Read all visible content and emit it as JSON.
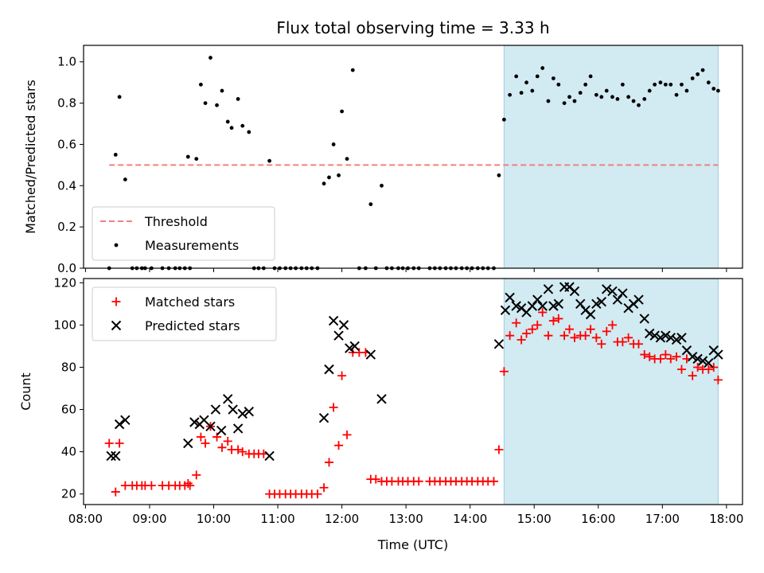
{
  "figure": {
    "title": "Flux total observing time = 3.33 h",
    "xlabel": "Time (UTC)"
  },
  "colors": {
    "highlight": "#add8e6",
    "threshold": "#f08080",
    "matched": "#ff0000",
    "predicted": "#000000",
    "measurement": "#000000"
  },
  "chart_data": [
    {
      "type": "scatter",
      "ylabel": "Matched/Predicted stars",
      "x_unit": "hours UTC",
      "xlim": [
        7.97,
        18.25
      ],
      "ylim": [
        0,
        1.08
      ],
      "yticks": [
        0.0,
        0.2,
        0.4,
        0.6,
        0.8,
        1.0
      ],
      "ytick_labels": [
        "0.0",
        "0.2",
        "0.4",
        "0.6",
        "0.8",
        "1.0"
      ],
      "grid": false,
      "legend_position": "lower-left",
      "highlight_span": [
        14.53,
        17.87
      ],
      "threshold": {
        "name": "Threshold",
        "y": 0.5,
        "x_range": [
          8.37,
          17.87
        ],
        "style": "dashed"
      },
      "series": [
        {
          "name": "Measurements",
          "marker": "dot",
          "x": [
            8.37,
            8.47,
            8.53,
            8.62,
            8.73,
            8.8,
            8.88,
            8.93,
            9.03,
            9.2,
            9.3,
            9.4,
            9.47,
            9.55,
            9.6,
            9.63,
            9.73,
            9.8,
            9.87,
            9.95,
            10.05,
            10.13,
            10.22,
            10.28,
            10.38,
            10.45,
            10.55,
            10.63,
            10.7,
            10.78,
            10.87,
            10.95,
            11.03,
            11.12,
            11.2,
            11.28,
            11.37,
            11.45,
            11.53,
            11.62,
            11.72,
            11.8,
            11.87,
            11.95,
            12.0,
            12.08,
            12.17,
            12.27,
            12.37,
            12.45,
            12.53,
            12.62,
            12.7,
            12.78,
            12.88,
            12.95,
            13.03,
            13.12,
            13.2,
            13.37,
            13.45,
            13.53,
            13.62,
            13.7,
            13.78,
            13.87,
            13.95,
            14.03,
            14.12,
            14.2,
            14.28,
            14.37,
            14.45,
            14.53,
            14.62,
            14.72,
            14.8,
            14.88,
            14.97,
            15.05,
            15.13,
            15.22,
            15.3,
            15.38,
            15.47,
            15.55,
            15.63,
            15.72,
            15.8,
            15.88,
            15.97,
            16.05,
            16.13,
            16.22,
            16.3,
            16.38,
            16.47,
            16.55,
            16.63,
            16.72,
            16.8,
            16.88,
            16.97,
            17.05,
            17.13,
            17.22,
            17.3,
            17.38,
            17.47,
            17.55,
            17.63,
            17.72,
            17.8,
            17.87
          ],
          "y": [
            0.0,
            0.55,
            0.83,
            0.43,
            0.0,
            0.0,
            0.0,
            0.0,
            0.0,
            0.0,
            0.0,
            0.0,
            0.0,
            0.0,
            0.54,
            0.0,
            0.53,
            0.89,
            0.8,
            1.02,
            0.79,
            0.86,
            0.71,
            0.68,
            0.82,
            0.69,
            0.66,
            0.0,
            0.0,
            0.0,
            0.52,
            0.0,
            0.0,
            0.0,
            0.0,
            0.0,
            0.0,
            0.0,
            0.0,
            0.0,
            0.41,
            0.44,
            0.6,
            0.45,
            0.76,
            0.53,
            0.96,
            0.0,
            0.0,
            0.31,
            0.0,
            0.4,
            0.0,
            0.0,
            0.0,
            0.0,
            0.0,
            0.0,
            0.0,
            0.0,
            0.0,
            0.0,
            0.0,
            0.0,
            0.0,
            0.0,
            0.0,
            0.0,
            0.0,
            0.0,
            0.0,
            0.0,
            0.45,
            0.72,
            0.84,
            0.93,
            0.85,
            0.9,
            0.86,
            0.93,
            0.97,
            0.81,
            0.92,
            0.89,
            0.8,
            0.83,
            0.81,
            0.85,
            0.89,
            0.93,
            0.84,
            0.83,
            0.86,
            0.83,
            0.82,
            0.89,
            0.83,
            0.81,
            0.79,
            0.82,
            0.86,
            0.89,
            0.9,
            0.89,
            0.89,
            0.84,
            0.89,
            0.86,
            0.92,
            0.94,
            0.96,
            0.9,
            0.87,
            0.86
          ]
        }
      ]
    },
    {
      "type": "scatter",
      "ylabel": "Count",
      "x_unit": "hours UTC",
      "xlim": [
        7.97,
        18.25
      ],
      "ylim": [
        15,
        122
      ],
      "yticks": [
        20,
        40,
        60,
        80,
        100,
        120
      ],
      "ytick_labels": [
        "20",
        "40",
        "60",
        "80",
        "100",
        "120"
      ],
      "xticks": [
        8,
        9,
        10,
        11,
        12,
        13,
        14,
        15,
        16,
        17,
        18
      ],
      "xtick_labels": [
        "08:00",
        "09:00",
        "10:00",
        "11:00",
        "12:00",
        "13:00",
        "14:00",
        "15:00",
        "16:00",
        "17:00",
        "18:00"
      ],
      "grid": false,
      "legend_position": "upper-left",
      "highlight_span": [
        14.53,
        17.87
      ],
      "series": [
        {
          "name": "Matched stars",
          "marker": "plus",
          "x": [
            8.37,
            8.47,
            8.53,
            8.62,
            8.73,
            8.8,
            8.88,
            8.93,
            9.03,
            9.2,
            9.3,
            9.4,
            9.47,
            9.55,
            9.6,
            9.63,
            9.73,
            9.8,
            9.87,
            9.95,
            10.05,
            10.13,
            10.22,
            10.28,
            10.38,
            10.45,
            10.55,
            10.63,
            10.7,
            10.78,
            10.87,
            10.95,
            11.03,
            11.12,
            11.2,
            11.28,
            11.37,
            11.45,
            11.53,
            11.62,
            11.72,
            11.8,
            11.87,
            11.95,
            12.0,
            12.08,
            12.17,
            12.27,
            12.37,
            12.45,
            12.53,
            12.62,
            12.7,
            12.78,
            12.88,
            12.95,
            13.03,
            13.12,
            13.2,
            13.37,
            13.45,
            13.53,
            13.62,
            13.7,
            13.78,
            13.87,
            13.95,
            14.03,
            14.12,
            14.2,
            14.28,
            14.37,
            14.45,
            14.53,
            14.62,
            14.72,
            14.8,
            14.88,
            14.97,
            15.05,
            15.13,
            15.22,
            15.3,
            15.38,
            15.47,
            15.55,
            15.63,
            15.72,
            15.8,
            15.88,
            15.97,
            16.05,
            16.13,
            16.22,
            16.3,
            16.38,
            16.47,
            16.55,
            16.63,
            16.72,
            16.8,
            16.88,
            16.97,
            17.05,
            17.13,
            17.22,
            17.3,
            17.38,
            17.47,
            17.55,
            17.63,
            17.72,
            17.8,
            17.87
          ],
          "y": [
            44,
            21,
            44,
            24,
            24,
            24,
            24,
            24,
            24,
            24,
            24,
            24,
            24,
            24,
            25,
            24,
            29,
            47,
            44,
            52,
            47,
            42,
            45,
            41,
            41,
            40,
            39,
            39,
            39,
            39,
            20,
            20,
            20,
            20,
            20,
            20,
            20,
            20,
            20,
            20,
            23,
            35,
            61,
            43,
            76,
            48,
            87,
            87,
            87,
            27,
            27,
            26,
            26,
            26,
            26,
            26,
            26,
            26,
            26,
            26,
            26,
            26,
            26,
            26,
            26,
            26,
            26,
            26,
            26,
            26,
            26,
            26,
            41,
            78,
            95,
            101,
            93,
            96,
            98,
            100,
            106,
            95,
            102,
            103,
            95,
            98,
            94,
            95,
            95,
            98,
            94,
            91,
            97,
            100,
            92,
            92,
            94,
            91,
            91,
            86,
            85,
            84,
            84,
            86,
            84,
            85,
            79,
            84,
            76,
            80,
            79,
            79,
            80,
            74
          ]
        },
        {
          "name": "Predicted stars",
          "marker": "x",
          "x": [
            8.4,
            8.47,
            8.53,
            8.62,
            9.6,
            9.7,
            9.78,
            9.85,
            9.95,
            10.03,
            10.12,
            10.22,
            10.3,
            10.38,
            10.45,
            10.55,
            10.87,
            11.72,
            11.8,
            11.87,
            11.95,
            12.03,
            12.12,
            12.2,
            12.45,
            12.62,
            14.45,
            14.55,
            14.62,
            14.72,
            14.8,
            14.88,
            14.97,
            15.05,
            15.13,
            15.22,
            15.3,
            15.38,
            15.47,
            15.55,
            15.63,
            15.72,
            15.8,
            15.88,
            15.97,
            16.05,
            16.13,
            16.22,
            16.3,
            16.38,
            16.47,
            16.55,
            16.63,
            16.72,
            16.8,
            16.88,
            16.97,
            17.05,
            17.13,
            17.22,
            17.3,
            17.38,
            17.47,
            17.55,
            17.63,
            17.72,
            17.8,
            17.87
          ],
          "y": [
            38,
            38,
            53,
            55,
            44,
            54,
            53,
            55,
            52,
            60,
            50,
            65,
            60,
            51,
            58,
            59,
            38,
            56,
            79,
            102,
            95,
            100,
            89,
            90,
            86,
            65,
            91,
            107,
            113,
            109,
            108,
            106,
            109,
            112,
            109,
            117,
            109,
            110,
            118,
            118,
            116,
            110,
            107,
            105,
            110,
            111,
            117,
            116,
            112,
            115,
            108,
            110,
            112,
            103,
            96,
            95,
            94,
            95,
            94,
            93,
            94,
            88,
            85,
            84,
            83,
            82,
            88,
            86
          ]
        }
      ]
    }
  ]
}
